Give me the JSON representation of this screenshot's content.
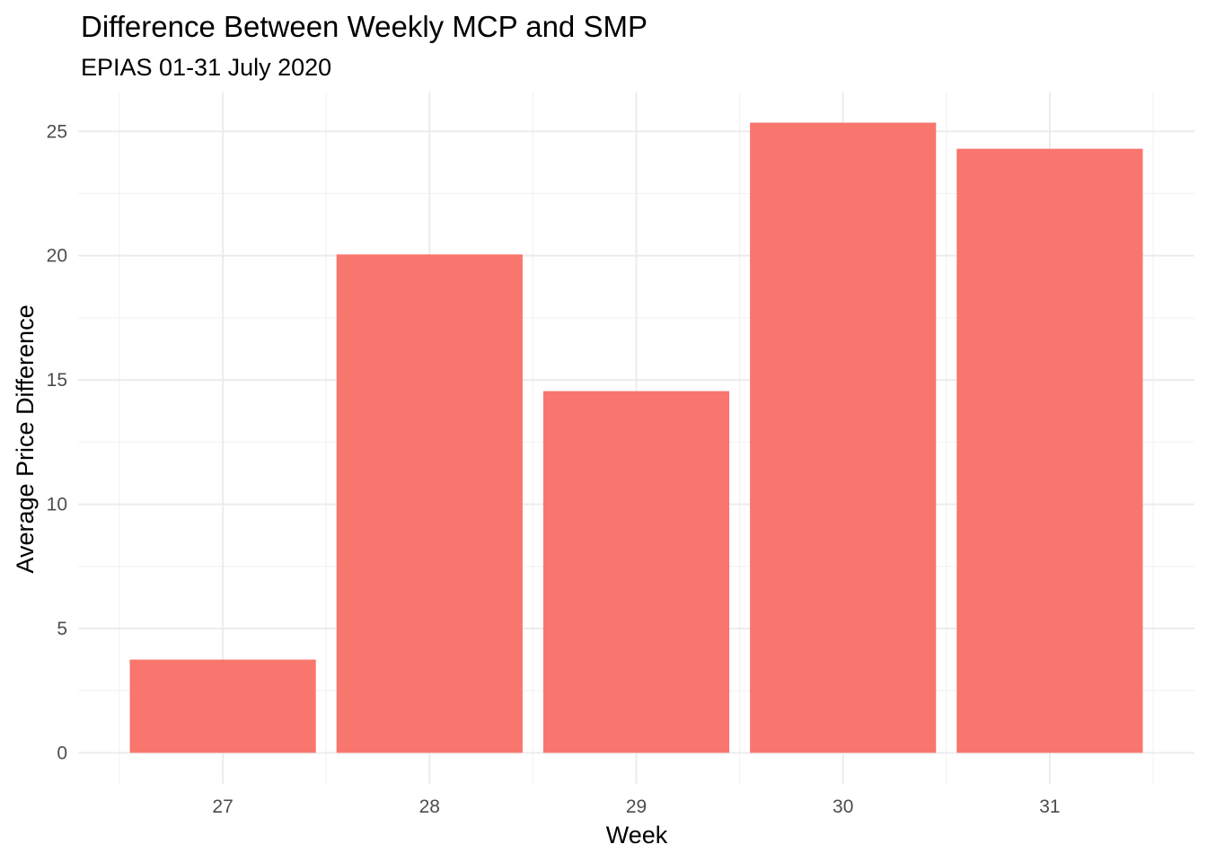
{
  "chart_data": {
    "type": "bar",
    "title": "Difference Between Weekly MCP and SMP",
    "subtitle": "EPIAS 01-31 July 2020",
    "xlabel": "Week",
    "ylabel": "Average Price Difference",
    "categories": [
      "27",
      "28",
      "29",
      "30",
      "31"
    ],
    "values": [
      3.75,
      20.05,
      14.55,
      25.35,
      24.3
    ],
    "ylim": [
      -1.25,
      26.6
    ],
    "yticks": [
      "0",
      "5",
      "10",
      "15",
      "20",
      "25"
    ],
    "grid": true,
    "bar_color": "#F8766D"
  }
}
